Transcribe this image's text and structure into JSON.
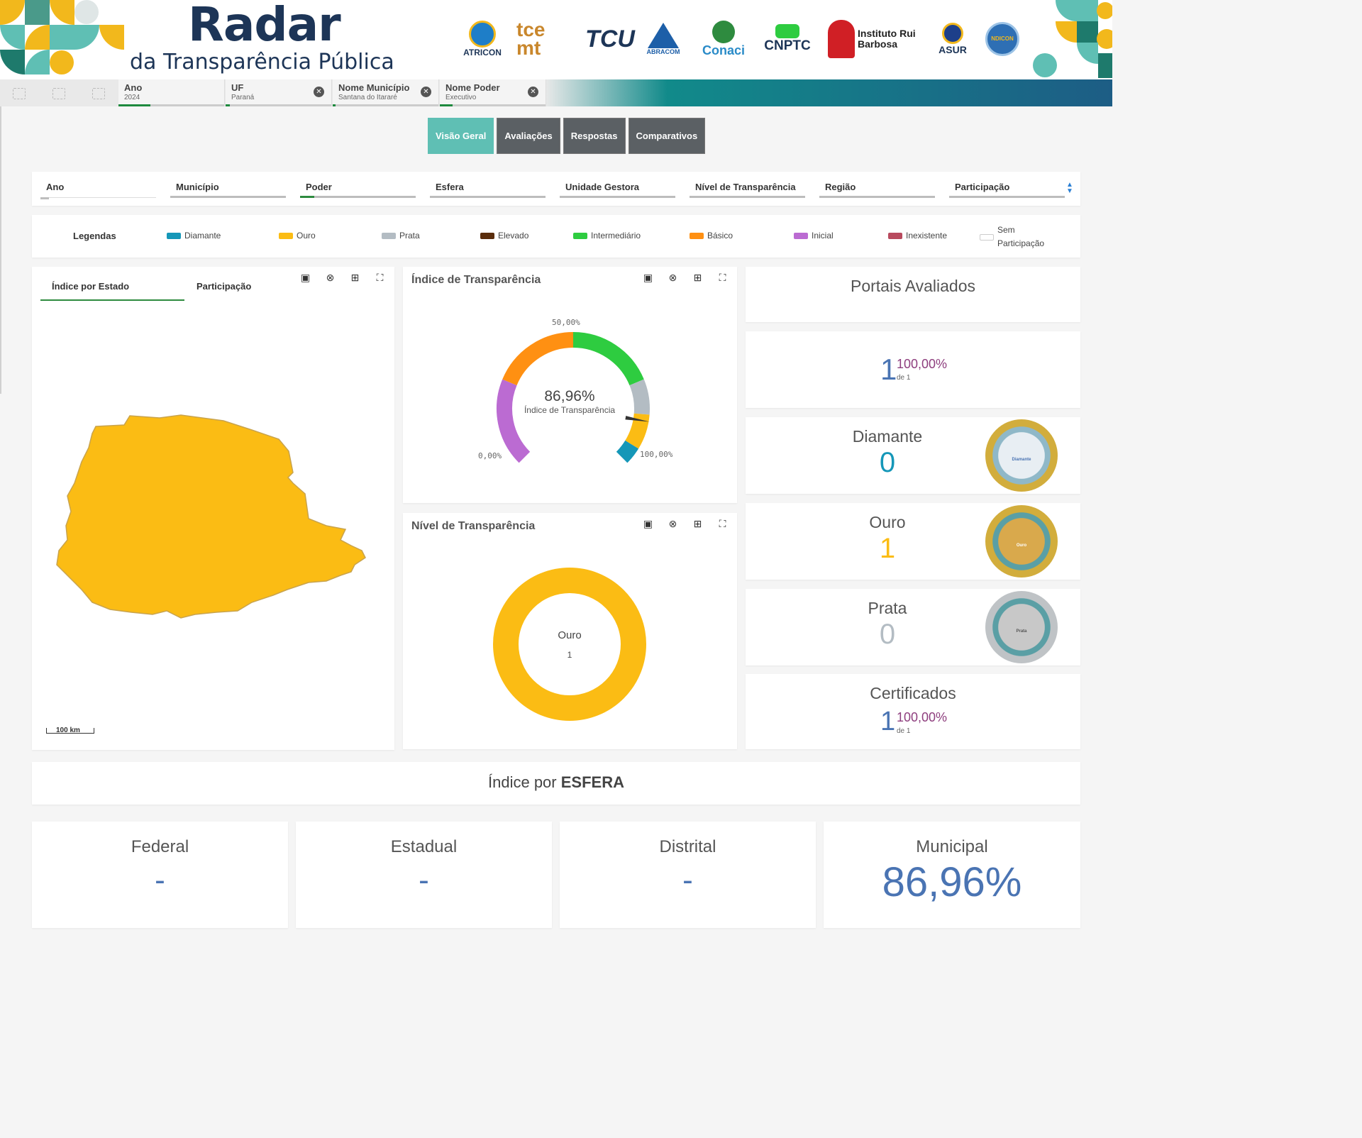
{
  "header": {
    "title": "Radar",
    "subtitle": "da Transparência Pública",
    "logos": [
      "ATRICON",
      "tce mt",
      "TCU",
      "ABRACOM",
      "Conaci",
      "CNPTC",
      "Instituto Rui Barbosa",
      "ASUR",
      "NDICON"
    ]
  },
  "filters_bar": {
    "chips": [
      {
        "label": "Ano",
        "value": "2024"
      },
      {
        "label": "UF",
        "value": "Paraná"
      },
      {
        "label": "Nome Município",
        "value": "Santana do Itararé"
      },
      {
        "label": "Nome Poder",
        "value": "Executivo"
      }
    ]
  },
  "tabs": [
    "Visão Geral",
    "Avaliações",
    "Respostas",
    "Comparativos"
  ],
  "dropdowns": [
    "Ano",
    "Município",
    "Poder",
    "Esfera",
    "Unidade Gestora",
    "Nível de Transparência",
    "Região",
    "Participação"
  ],
  "legend": {
    "title": "Legendas",
    "items": [
      {
        "label": "Diamante",
        "color": "#1597b8"
      },
      {
        "label": "Ouro",
        "color": "#fbbc14"
      },
      {
        "label": "Prata",
        "color": "#b3bcc3"
      },
      {
        "label": "Elevado",
        "color": "#5a2d0c"
      },
      {
        "label": "Intermediário",
        "color": "#2ecc40"
      },
      {
        "label": "Básico",
        "color": "#ff9012"
      },
      {
        "label": "Inicial",
        "color": "#bb6bd2"
      },
      {
        "label": "Inexistente",
        "color": "#b84a5e"
      },
      {
        "label": "Sem Participação",
        "color": "#ffffff"
      }
    ]
  },
  "map_panel": {
    "tab_active": "Índice por Estado",
    "tab_other": "Participação",
    "scale": "100 km",
    "fill": "#fbbc14"
  },
  "gauge": {
    "title": "Índice de Transparência",
    "value_text": "86,96%",
    "caption": "Índice de Transparência",
    "min_label": "0,00%",
    "mid_label": "50,00%",
    "max_label": "100,00%",
    "value": 86.96
  },
  "donut": {
    "title": "Nível de Transparência",
    "label": "Ouro",
    "count": "1",
    "color": "#fbbc14"
  },
  "portais": {
    "title": "Portais Avaliados",
    "count": "1",
    "pct": "100,00%",
    "of": "de 1"
  },
  "selos": [
    {
      "name": "Diamante",
      "value": "0",
      "color": "#1597b8",
      "medal": "Diamante"
    },
    {
      "name": "Ouro",
      "value": "1",
      "color": "#fbbc14",
      "medal": "Ouro"
    },
    {
      "name": "Prata",
      "value": "0",
      "color": "#b3bcc3",
      "medal": "Prata"
    }
  ],
  "certificados": {
    "title": "Certificados",
    "count": "1",
    "pct": "100,00%",
    "of": "de 1"
  },
  "esfera": {
    "title_prefix": "Índice por",
    "title_bold": "ESFERA",
    "boxes": [
      {
        "name": "Federal",
        "value": "-"
      },
      {
        "name": "Estadual",
        "value": "-"
      },
      {
        "name": "Distrital",
        "value": "-"
      },
      {
        "name": "Municipal",
        "value": "86,96%"
      }
    ]
  }
}
